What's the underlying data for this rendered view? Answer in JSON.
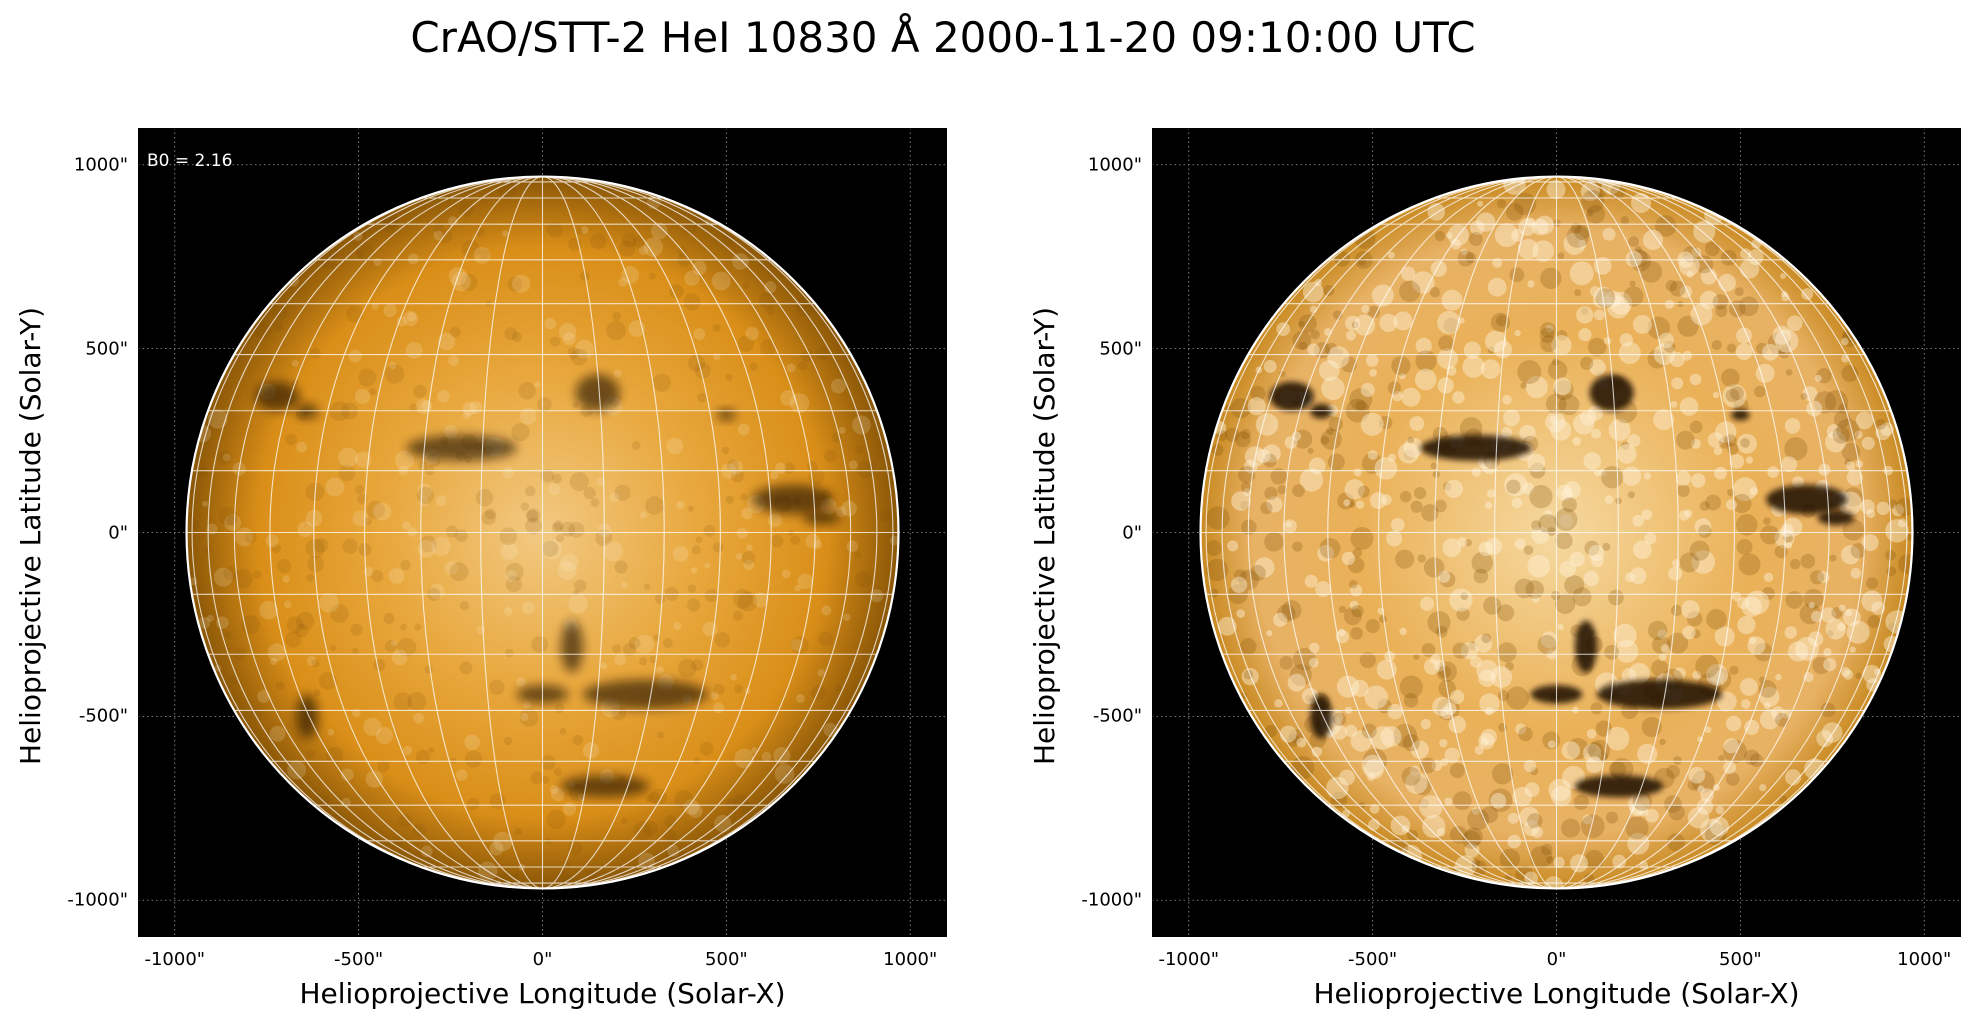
{
  "figure": {
    "title": "CrAO/STT-2 HeI 10830 Å 2000-11-20 09:10:00 UTC"
  },
  "panels": [
    {
      "id": "left",
      "xlabel": "Helioprojective Longitude (Solar-X)",
      "ylabel": "Helioprojective Latitude (Solar-Y)",
      "annotation": "B0 = 2.16",
      "contrast": "normal",
      "x_ticks": [
        "-1000\"",
        "-500\"",
        "0\"",
        "500\"",
        "1000\""
      ],
      "y_ticks": [
        "1000\"",
        "500\"",
        "0\"",
        "-500\"",
        "-1000\""
      ]
    },
    {
      "id": "right",
      "xlabel": "Helioprojective Longitude (Solar-X)",
      "ylabel": "Helioprojective Latitude (Solar-Y)",
      "annotation": "",
      "contrast": "enhanced",
      "x_ticks": [
        "-1000\"",
        "-500\"",
        "0\"",
        "500\"",
        "1000\""
      ],
      "y_ticks": [
        "1000\"",
        "500\"",
        "0\"",
        "-500\"",
        "-1000\""
      ]
    }
  ],
  "image_content": {
    "solar_radius_arcsec": 968,
    "axis_range_arcsec": [
      -1100,
      1100
    ],
    "tick_values_arcsec": [
      -1000,
      -500,
      0,
      500,
      1000
    ],
    "grid_spacing_deg": 10,
    "colors": {
      "background": "#000000",
      "disk_center": "#f2c982",
      "disk_mid": "#d98e18",
      "disk_limb": "#8a5606",
      "grid": "#ffffff",
      "dark_feature": "#1a0d00"
    },
    "filaments_arcsec": [
      {
        "cx": -720,
        "cy": 370,
        "rx": 60,
        "ry": 40
      },
      {
        "cx": -640,
        "cy": 330,
        "rx": 30,
        "ry": 20
      },
      {
        "cx": -220,
        "cy": 230,
        "rx": 150,
        "ry": 35
      },
      {
        "cx": 150,
        "cy": 380,
        "rx": 60,
        "ry": 50
      },
      {
        "cx": 500,
        "cy": 320,
        "rx": 25,
        "ry": 15
      },
      {
        "cx": 680,
        "cy": 90,
        "rx": 110,
        "ry": 40
      },
      {
        "cx": 760,
        "cy": 40,
        "rx": 50,
        "ry": 20
      },
      {
        "cx": 80,
        "cy": -310,
        "rx": 30,
        "ry": 70
      },
      {
        "cx": 280,
        "cy": -440,
        "rx": 170,
        "ry": 40
      },
      {
        "cx": 0,
        "cy": -440,
        "rx": 70,
        "ry": 25
      },
      {
        "cx": 170,
        "cy": -690,
        "rx": 120,
        "ry": 30
      },
      {
        "cx": -640,
        "cy": -500,
        "rx": 30,
        "ry": 60
      }
    ]
  }
}
